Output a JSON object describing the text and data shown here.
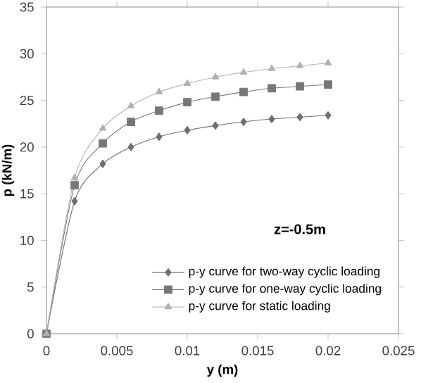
{
  "chart_data": {
    "type": "line",
    "xlabel": "y (m)",
    "ylabel": "p (kN/m)",
    "annotations": [
      "z=-0.5m"
    ],
    "x": [
      0,
      0.002,
      0.004,
      0.006,
      0.008,
      0.01,
      0.012,
      0.014,
      0.016,
      0.018,
      0.02
    ],
    "series": [
      {
        "name": "p-y curve for two-way cyclic loading",
        "color": "#6e6e6e",
        "marker": "diamond",
        "values": [
          0,
          14.2,
          18.2,
          20.0,
          21.1,
          21.8,
          22.3,
          22.7,
          23.0,
          23.2,
          23.4
        ]
      },
      {
        "name": "p-y curve for one-way cyclic loading",
        "color": "#777777",
        "marker": "square",
        "values": [
          0,
          15.9,
          20.4,
          22.7,
          23.9,
          24.8,
          25.4,
          25.9,
          26.3,
          26.5,
          26.7
        ]
      },
      {
        "name": "p-y curve for static loading",
        "color": "#b0b0b0",
        "marker": "triangle",
        "values": [
          0,
          16.7,
          22.0,
          24.4,
          25.9,
          26.8,
          27.5,
          28.0,
          28.4,
          28.7,
          29.0
        ]
      }
    ],
    "xlim": [
      0,
      0.025
    ],
    "ylim": [
      0,
      35
    ],
    "xticks": [
      0,
      0.005,
      0.01,
      0.015,
      0.02,
      0.025
    ],
    "yticks": [
      0,
      5,
      10,
      15,
      20,
      25,
      30,
      35
    ],
    "grid": false,
    "legend": "bottom right",
    "line_style": "solid"
  }
}
